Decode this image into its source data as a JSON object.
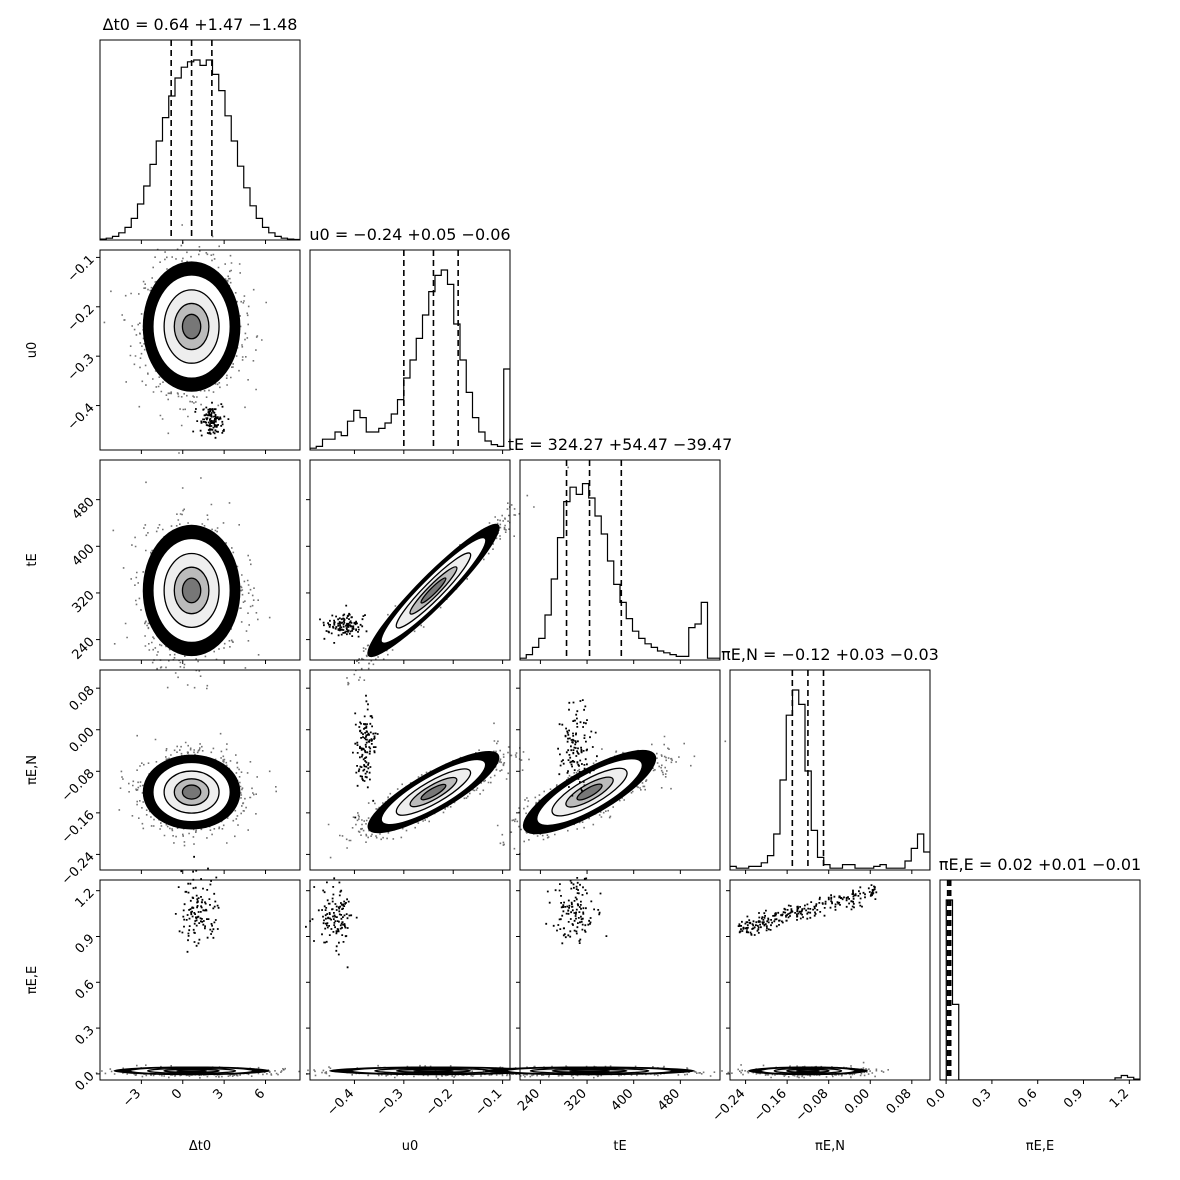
{
  "chart_data": {
    "type": "corner",
    "parameters": [
      {
        "key": "dt0",
        "axis_label": "Δt0",
        "title": "Δt0 = 0.64 +1.47 −1.48",
        "median": 0.64,
        "err_plus": 1.47,
        "err_minus": 1.48,
        "quantiles": [
          -0.84,
          0.64,
          2.11
        ],
        "range": [
          -6.0,
          8.5
        ],
        "ticks": [
          -3,
          0,
          3,
          6
        ],
        "tick_labels": [
          "−3",
          "0",
          "3",
          "6"
        ],
        "histogram": [
          0.005,
          0.01,
          0.02,
          0.04,
          0.07,
          0.12,
          0.2,
          0.3,
          0.42,
          0.55,
          0.68,
          0.8,
          0.9,
          0.96,
          0.99,
          1.0,
          0.97,
          1.0,
          0.92,
          0.83,
          0.69,
          0.55,
          0.41,
          0.29,
          0.19,
          0.12,
          0.07,
          0.04,
          0.02,
          0.01,
          0.005,
          0.003
        ]
      },
      {
        "key": "u0",
        "axis_label": "u0",
        "title": "u0 = −0.24 +0.05 −0.06",
        "median": -0.24,
        "err_plus": 0.05,
        "err_minus": 0.06,
        "quantiles": [
          -0.3,
          -0.24,
          -0.19
        ],
        "range": [
          -0.49,
          -0.085
        ],
        "ticks": [
          -0.4,
          -0.3,
          -0.2,
          -0.1
        ],
        "tick_labels": [
          "−0.4",
          "−0.3",
          "−0.2",
          "−0.1"
        ],
        "histogram": [
          0.01,
          0.02,
          0.06,
          0.06,
          0.1,
          0.08,
          0.16,
          0.22,
          0.18,
          0.1,
          0.1,
          0.12,
          0.15,
          0.2,
          0.28,
          0.4,
          0.5,
          0.62,
          0.75,
          0.88,
          0.97,
          1.0,
          0.92,
          0.7,
          0.5,
          0.32,
          0.18,
          0.1,
          0.05,
          0.03,
          0.02,
          0.45
        ]
      },
      {
        "key": "tE",
        "axis_label": "tE",
        "title": "tE = 324.27 +54.47 −39.47",
        "median": 324.27,
        "err_plus": 54.47,
        "err_minus": 39.47,
        "quantiles": [
          284.8,
          324.27,
          378.74
        ],
        "range": [
          205,
          548
        ],
        "ticks": [
          240,
          320,
          400,
          480
        ],
        "tick_labels": [
          "240",
          "320",
          "400",
          "480"
        ],
        "histogram": [
          0.01,
          0.03,
          0.07,
          0.12,
          0.25,
          0.45,
          0.68,
          0.88,
          0.96,
          0.92,
          0.98,
          0.9,
          0.8,
          0.7,
          0.55,
          0.42,
          0.32,
          0.23,
          0.16,
          0.12,
          0.09,
          0.07,
          0.05,
          0.04,
          0.03,
          0.02,
          0.02,
          0.18,
          0.2,
          0.32,
          0.01,
          0.01
        ]
      },
      {
        "key": "piEN",
        "axis_label": "πE,N",
        "title": "πE,N = −0.12 +0.03 −0.03",
        "median": -0.12,
        "err_plus": 0.03,
        "err_minus": 0.03,
        "quantiles": [
          -0.15,
          -0.12,
          -0.09
        ],
        "range": [
          -0.27,
          0.115
        ],
        "ticks": [
          -0.24,
          -0.16,
          -0.08,
          0.0,
          0.08
        ],
        "tick_labels": [
          "−0.24",
          "−0.16",
          "−0.08",
          "0.00",
          "0.08"
        ],
        "histogram": [
          0.02,
          0.01,
          0.01,
          0.02,
          0.02,
          0.04,
          0.08,
          0.2,
          0.5,
          0.86,
          1.0,
          0.92,
          0.55,
          0.22,
          0.07,
          0.03,
          0.01,
          0.01,
          0.03,
          0.03,
          0.01,
          0.01,
          0.01,
          0.02,
          0.03,
          0.01,
          0.01,
          0.01,
          0.05,
          0.12,
          0.2,
          0.1
        ]
      },
      {
        "key": "piEE",
        "axis_label": "πE,E",
        "title": "πE,E = 0.02 +0.01 −0.01",
        "median": 0.02,
        "err_plus": 0.01,
        "err_minus": 0.01,
        "quantiles": [
          0.01,
          0.02,
          0.03
        ],
        "range": [
          -0.04,
          1.27
        ],
        "ticks": [
          0.0,
          0.3,
          0.6,
          0.9,
          1.2
        ],
        "tick_labels": [
          "0.0",
          "0.3",
          "0.6",
          "0.9",
          "1.2"
        ],
        "histogram": [
          0.0,
          1.0,
          0.42,
          0.0,
          0.0,
          0.0,
          0.0,
          0.0,
          0.0,
          0.0,
          0.0,
          0.0,
          0.0,
          0.0,
          0.0,
          0.0,
          0.0,
          0.0,
          0.0,
          0.0,
          0.0,
          0.0,
          0.0,
          0.0,
          0.0,
          0.0,
          0.0,
          0.0,
          0.012,
          0.025,
          0.015,
          0.005
        ]
      }
    ],
    "labels_text": {
      "titles": [
        "Δt0 = 0.64 +1.47 −1.48",
        "u0 = −0.24 +0.05 −0.06",
        "tE = 324.27 +54.47 −39.47",
        "πE,N = −0.12 +0.03 −0.03",
        "πE,E = 0.02 +0.01 −0.01"
      ]
    },
    "grid": false,
    "legend": "none"
  }
}
